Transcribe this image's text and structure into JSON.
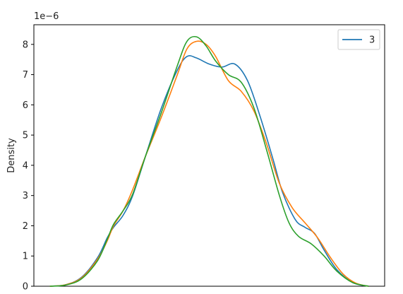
{
  "chart_data": {
    "type": "line",
    "title": "",
    "xlabel": "",
    "ylabel": "Density",
    "y_offset_label": "1e−6",
    "ylim": [
      0,
      8.65
    ],
    "xlim": [
      -0.05,
      1.05
    ],
    "y_ticks": [
      0,
      1,
      2,
      3,
      4,
      5,
      6,
      7,
      8
    ],
    "y_tick_labels": [
      "0",
      "1",
      "2",
      "3",
      "4",
      "5",
      "6",
      "7",
      "8"
    ],
    "x_ticks_shown": false,
    "grid": false,
    "legend": {
      "position": "top-right",
      "entries": [
        "3"
      ]
    },
    "series": [
      {
        "name": "3",
        "color": "#1f77b4",
        "points": [
          [
            0,
            0
          ],
          [
            0.05,
            0.05
          ],
          [
            0.1,
            0.3
          ],
          [
            0.15,
            0.95
          ],
          [
            0.18,
            1.6
          ],
          [
            0.2,
            1.95
          ],
          [
            0.23,
            2.35
          ],
          [
            0.26,
            3.0
          ],
          [
            0.3,
            4.3
          ],
          [
            0.35,
            5.9
          ],
          [
            0.4,
            7.15
          ],
          [
            0.43,
            7.6
          ],
          [
            0.46,
            7.55
          ],
          [
            0.5,
            7.35
          ],
          [
            0.54,
            7.25
          ],
          [
            0.58,
            7.35
          ],
          [
            0.62,
            6.8
          ],
          [
            0.66,
            5.6
          ],
          [
            0.7,
            4.2
          ],
          [
            0.73,
            3.1
          ],
          [
            0.77,
            2.2
          ],
          [
            0.8,
            1.95
          ],
          [
            0.83,
            1.75
          ],
          [
            0.86,
            1.2
          ],
          [
            0.9,
            0.55
          ],
          [
            0.95,
            0.12
          ],
          [
            1,
            0
          ]
        ]
      },
      {
        "color": "#ff7f0e",
        "points": [
          [
            0,
            0
          ],
          [
            0.05,
            0.05
          ],
          [
            0.1,
            0.28
          ],
          [
            0.15,
            0.9
          ],
          [
            0.18,
            1.5
          ],
          [
            0.2,
            2.0
          ],
          [
            0.23,
            2.5
          ],
          [
            0.26,
            3.2
          ],
          [
            0.3,
            4.3
          ],
          [
            0.35,
            5.6
          ],
          [
            0.4,
            7.0
          ],
          [
            0.43,
            7.85
          ],
          [
            0.46,
            8.1
          ],
          [
            0.49,
            8.0
          ],
          [
            0.52,
            7.6
          ],
          [
            0.56,
            6.8
          ],
          [
            0.6,
            6.45
          ],
          [
            0.64,
            5.8
          ],
          [
            0.68,
            4.7
          ],
          [
            0.72,
            3.4
          ],
          [
            0.76,
            2.6
          ],
          [
            0.8,
            2.1
          ],
          [
            0.84,
            1.6
          ],
          [
            0.88,
            0.95
          ],
          [
            0.92,
            0.4
          ],
          [
            0.96,
            0.1
          ],
          [
            1,
            0
          ]
        ]
      },
      {
        "color": "#2ca02c",
        "points": [
          [
            0,
            0
          ],
          [
            0.05,
            0.04
          ],
          [
            0.1,
            0.25
          ],
          [
            0.15,
            0.85
          ],
          [
            0.18,
            1.55
          ],
          [
            0.2,
            2.05
          ],
          [
            0.23,
            2.5
          ],
          [
            0.26,
            3.05
          ],
          [
            0.3,
            4.3
          ],
          [
            0.35,
            5.75
          ],
          [
            0.4,
            7.3
          ],
          [
            0.43,
            8.1
          ],
          [
            0.46,
            8.25
          ],
          [
            0.49,
            7.95
          ],
          [
            0.52,
            7.45
          ],
          [
            0.56,
            7.0
          ],
          [
            0.6,
            6.75
          ],
          [
            0.64,
            5.9
          ],
          [
            0.68,
            4.5
          ],
          [
            0.72,
            3.0
          ],
          [
            0.75,
            2.1
          ],
          [
            0.78,
            1.65
          ],
          [
            0.82,
            1.4
          ],
          [
            0.86,
            1.0
          ],
          [
            0.9,
            0.5
          ],
          [
            0.95,
            0.12
          ],
          [
            1,
            0
          ]
        ]
      }
    ]
  }
}
